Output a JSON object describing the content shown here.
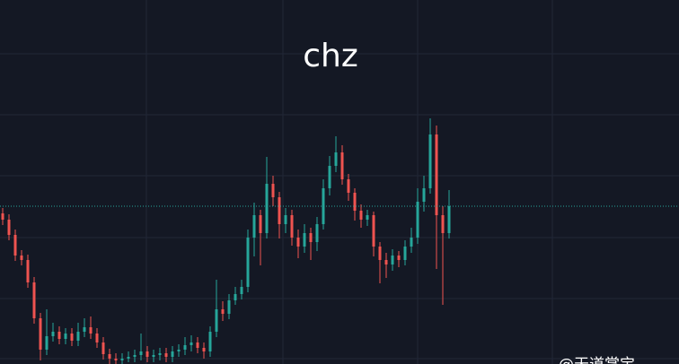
{
  "chart_data": {
    "type": "candlestick",
    "title": "chz",
    "watermark": "@天道掌宝",
    "ylim": [
      0,
      406
    ],
    "up_color": "#26a69a",
    "down_color": "#ef5350",
    "candles": [
      [
        168,
        174,
        155,
        161
      ],
      [
        161,
        167,
        138,
        144
      ],
      [
        144,
        150,
        115,
        121
      ],
      [
        121,
        127,
        110,
        116
      ],
      [
        116,
        122,
        85,
        91
      ],
      [
        91,
        97,
        45,
        51
      ],
      [
        51,
        57,
        4,
        16
      ],
      [
        16,
        61,
        10,
        31
      ],
      [
        31,
        46,
        25,
        36
      ],
      [
        36,
        42,
        22,
        28
      ],
      [
        28,
        40,
        22,
        34
      ],
      [
        34,
        40,
        20,
        26
      ],
      [
        26,
        46,
        20,
        36
      ],
      [
        36,
        51,
        30,
        41
      ],
      [
        41,
        53,
        28,
        34
      ],
      [
        34,
        40,
        18,
        24
      ],
      [
        24,
        30,
        5,
        11
      ],
      [
        11,
        17,
        0,
        6
      ],
      [
        6,
        12,
        0,
        4
      ],
      [
        4,
        12,
        0,
        6
      ],
      [
        6,
        14,
        2,
        8
      ],
      [
        8,
        16,
        2,
        10
      ],
      [
        10,
        34,
        4,
        14
      ],
      [
        14,
        20,
        2,
        8
      ],
      [
        8,
        16,
        2,
        10
      ],
      [
        10,
        18,
        4,
        12
      ],
      [
        12,
        18,
        2,
        8
      ],
      [
        8,
        20,
        2,
        14
      ],
      [
        14,
        22,
        8,
        16
      ],
      [
        16,
        30,
        10,
        21
      ],
      [
        21,
        32,
        14,
        24
      ],
      [
        24,
        30,
        12,
        18
      ],
      [
        18,
        24,
        6,
        14
      ],
      [
        14,
        42,
        8,
        36
      ],
      [
        36,
        94,
        30,
        61
      ],
      [
        61,
        70,
        48,
        56
      ],
      [
        56,
        78,
        50,
        71
      ],
      [
        71,
        86,
        66,
        78
      ],
      [
        78,
        94,
        72,
        86
      ],
      [
        86,
        150,
        80,
        141
      ],
      [
        141,
        180,
        120,
        166
      ],
      [
        166,
        172,
        110,
        146
      ],
      [
        146,
        231,
        140,
        201
      ],
      [
        201,
        210,
        176,
        186
      ],
      [
        186,
        192,
        140,
        156
      ],
      [
        156,
        174,
        146,
        166
      ],
      [
        166,
        172,
        132,
        141
      ],
      [
        141,
        150,
        118,
        131
      ],
      [
        131,
        156,
        124,
        146
      ],
      [
        146,
        152,
        116,
        136
      ],
      [
        136,
        164,
        126,
        156
      ],
      [
        156,
        206,
        150,
        196
      ],
      [
        196,
        232,
        188,
        221
      ],
      [
        221,
        254,
        214,
        236
      ],
      [
        236,
        244,
        200,
        206
      ],
      [
        206,
        212,
        182,
        191
      ],
      [
        191,
        196,
        160,
        171
      ],
      [
        171,
        178,
        152,
        161
      ],
      [
        161,
        172,
        154,
        166
      ],
      [
        166,
        170,
        120,
        131
      ],
      [
        131,
        136,
        90,
        116
      ],
      [
        116,
        124,
        96,
        111
      ],
      [
        111,
        128,
        104,
        121
      ],
      [
        121,
        126,
        108,
        116
      ],
      [
        116,
        138,
        110,
        131
      ],
      [
        131,
        152,
        124,
        141
      ],
      [
        141,
        196,
        134,
        181
      ],
      [
        181,
        210,
        170,
        196
      ],
      [
        196,
        274,
        190,
        256
      ],
      [
        256,
        266,
        106,
        166
      ],
      [
        166,
        176,
        66,
        146
      ],
      [
        146,
        194,
        140,
        176
      ]
    ]
  }
}
